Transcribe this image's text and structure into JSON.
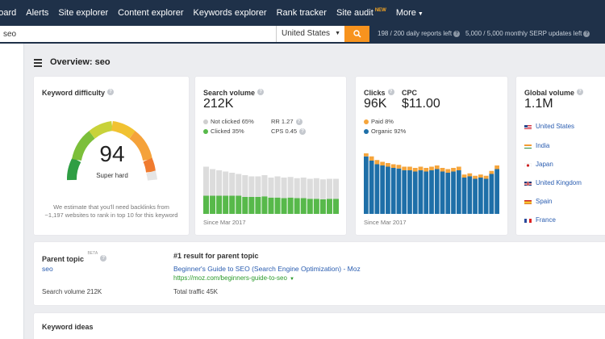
{
  "nav": {
    "items": [
      "hboard",
      "Alerts",
      "Site explorer",
      "Content explorer",
      "Keywords explorer",
      "Rank tracker",
      "Site audit",
      "More"
    ],
    "new_badge": "NEW"
  },
  "search": {
    "value": "seo",
    "country": "United States",
    "daily_reports": "198 / 200 daily reports left",
    "serp_updates": "5,000 / 5,000 monthly SERP updates left"
  },
  "page_title": "Overview: seo",
  "colors": {
    "nav_bg": "#1f3149",
    "accent": "#f7931e",
    "link": "#2a5db0",
    "green": "#57b94a",
    "blue": "#1e6fa8",
    "orange": "#f5a53c"
  },
  "keyword_difficulty": {
    "title": "Keyword difficulty",
    "value": "94",
    "label": "Super hard",
    "description": "We estimate that you'll need backlinks from ~1,197 websites to rank in top 10 for this keyword"
  },
  "search_volume": {
    "title": "Search volume",
    "value": "212K",
    "not_clicked": "Not clicked 65%",
    "clicked": "Clicked 35%",
    "rr": "RR 1.27",
    "cps": "CPS 0.45",
    "since": "Since Mar 2017",
    "chart_totals": [
      0.78,
      0.74,
      0.72,
      0.7,
      0.68,
      0.66,
      0.64,
      0.62,
      0.62,
      0.64,
      0.6,
      0.62,
      0.6,
      0.61,
      0.59,
      0.6,
      0.58,
      0.59,
      0.57,
      0.58,
      0.58
    ],
    "chart_clicked": [
      0.3,
      0.3,
      0.3,
      0.3,
      0.3,
      0.3,
      0.28,
      0.28,
      0.28,
      0.29,
      0.27,
      0.27,
      0.26,
      0.27,
      0.26,
      0.26,
      0.25,
      0.25,
      0.24,
      0.25,
      0.25
    ]
  },
  "clicks": {
    "title": "Clicks",
    "value": "96K",
    "cpc_title": "CPC",
    "cpc_value": "$11.00",
    "paid": "Paid 8%",
    "organic": "Organic 92%",
    "since": "Since Mar 2017",
    "chart_organic": [
      0.95,
      0.88,
      0.82,
      0.8,
      0.78,
      0.76,
      0.75,
      0.72,
      0.72,
      0.7,
      0.72,
      0.7,
      0.72,
      0.74,
      0.7,
      0.68,
      0.7,
      0.72,
      0.6,
      0.62,
      0.58,
      0.6,
      0.58,
      0.66,
      0.74
    ],
    "chart_paid": [
      0.08,
      0.07,
      0.07,
      0.06,
      0.06,
      0.06,
      0.06,
      0.06,
      0.06,
      0.06,
      0.06,
      0.06,
      0.06,
      0.06,
      0.06,
      0.06,
      0.06,
      0.06,
      0.05,
      0.05,
      0.05,
      0.05,
      0.05,
      0.05,
      0.06
    ]
  },
  "global_volume": {
    "title": "Global volume",
    "value": "1.1M",
    "countries": [
      "United States",
      "India",
      "Japan",
      "United Kingdom",
      "Spain",
      "France"
    ]
  },
  "parent_topic": {
    "title": "Parent topic",
    "beta": "BETA",
    "keyword": "seo",
    "search_volume": "Search volume 212K",
    "result_title": "#1 result for parent topic",
    "result_link": "Beginner's Guide to SEO (Search Engine Optimization) - Moz",
    "result_url": "https://moz.com/beginners-guide-to-seo",
    "total_traffic": "Total traffic 45K"
  },
  "keyword_ideas": {
    "title": "Keyword ideas"
  }
}
